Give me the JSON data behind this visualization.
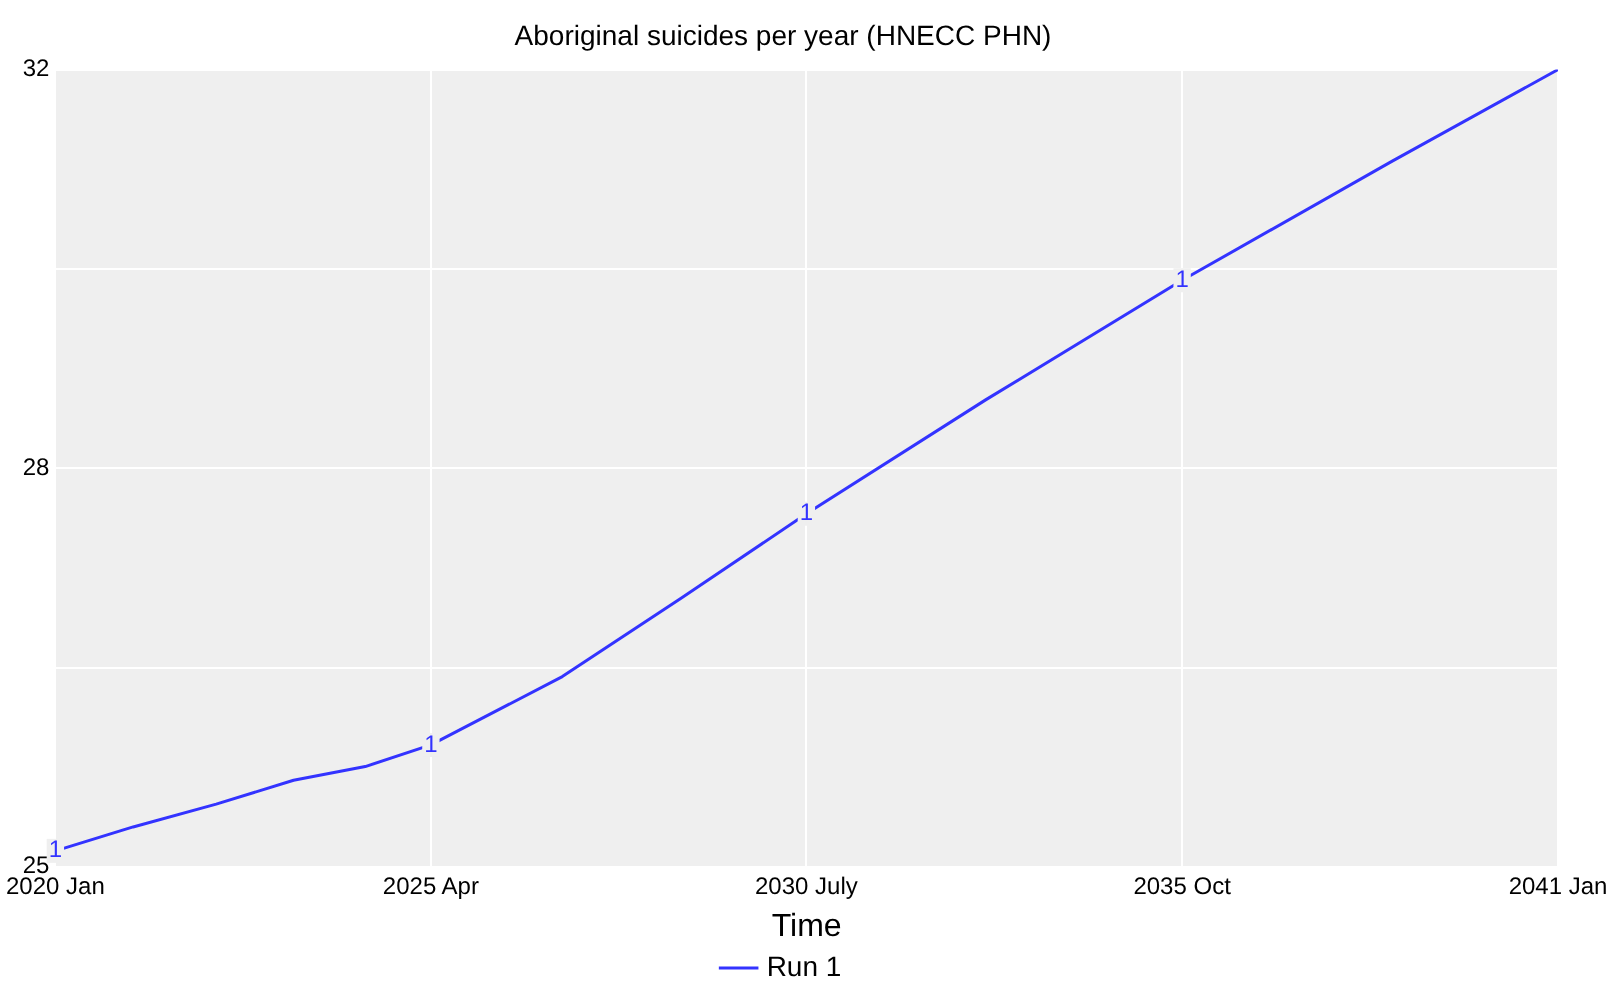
{
  "chart_data": {
    "type": "line",
    "title": "Aboriginal suicides per year (HNECC PHN)",
    "xlabel": "Time",
    "series": [
      {
        "name": "Run 1",
        "color": "#3333ff",
        "x": [
          "2020-01",
          "2021-02",
          "2022-04",
          "2023-05",
          "2024-05",
          "2025-04",
          "2027-02",
          "2028-10",
          "2030-07",
          "2033-01",
          "2035-10",
          "2038-09",
          "2041-01"
        ],
        "values": [
          25.14,
          25.35,
          25.55,
          25.76,
          25.88,
          26.07,
          26.67,
          27.36,
          28.1,
          29.1,
          30.15,
          31.19,
          32.0
        ]
      }
    ],
    "xlim": [
      "2020-01",
      "2041-01"
    ],
    "xticks": [
      {
        "value": "2020-01",
        "label": "2020 Jan"
      },
      {
        "value": "2025-04",
        "label": "2025 Apr"
      },
      {
        "value": "2030-07",
        "label": "2030 July"
      },
      {
        "value": "2035-10",
        "label": "2035 Oct"
      },
      {
        "value": "2041-01",
        "label": "2041 Jan"
      }
    ],
    "ylim": [
      25,
      32
    ],
    "yticks": [
      25,
      {
        "value": 26.75,
        "label": null
      },
      {
        "value": 28.5,
        "label": "28"
      },
      {
        "value": 30.25,
        "label": null
      },
      32
    ],
    "annotations": [
      {
        "text": "1",
        "x": "2020-01",
        "y": 25.14
      },
      {
        "text": "1",
        "x": "2025-04",
        "y": 26.07
      },
      {
        "text": "1",
        "x": "2030-07",
        "y": 28.1
      },
      {
        "text": "1",
        "x": "2035-10",
        "y": 30.15
      }
    ],
    "grid": true,
    "legend": "bottom",
    "marker": "none",
    "line_style": "solid"
  }
}
